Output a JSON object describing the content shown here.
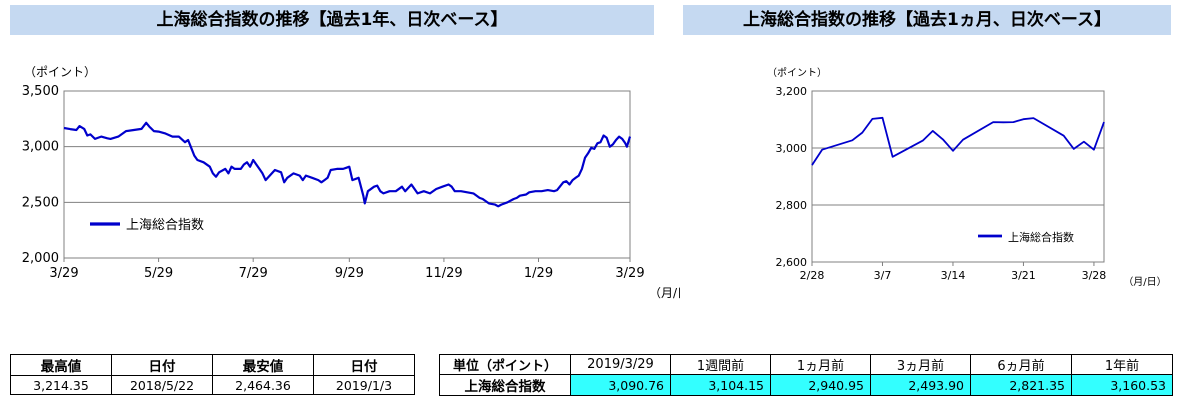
{
  "left_panel": {
    "title": "上海総合指数の推移【過去1年、日次ベース】",
    "unit_label": "（ポイント）",
    "xaxis_unit": "（月/日）"
  },
  "right_panel": {
    "title": "上海総合指数の推移【過去1ヵ月、日次ベース】",
    "unit_label": "（ポイント）",
    "xaxis_unit": "（月/日）"
  },
  "chart_data": [
    {
      "type": "line",
      "title": "上海総合指数の推移【過去1年、日次ベース】",
      "ylabel": "（ポイント）",
      "xlabel": "（月/日）",
      "ylim": [
        2000,
        3500
      ],
      "yticks": [
        2000,
        2500,
        3000,
        3500
      ],
      "ytick_labels": [
        "2,000",
        "2,500",
        "3,000",
        "3,500"
      ],
      "xlim": [
        0,
        365
      ],
      "xticks": [
        {
          "label": "3/29",
          "x": 0
        },
        {
          "label": "5/29",
          "x": 61
        },
        {
          "label": "7/29",
          "x": 122
        },
        {
          "label": "9/29",
          "x": 184
        },
        {
          "label": "11/29",
          "x": 245
        },
        {
          "label": "1/29",
          "x": 306
        },
        {
          "label": "3/29",
          "x": 365
        }
      ],
      "grid": true,
      "legend": "center-left",
      "series": [
        {
          "name": "上海総合指数",
          "color": "#0000cc",
          "points": [
            [
              0,
              3168
            ],
            [
              4,
              3158
            ],
            [
              8,
              3150
            ],
            [
              10,
              3185
            ],
            [
              13,
              3160
            ],
            [
              15,
              3100
            ],
            [
              17,
              3110
            ],
            [
              20,
              3070
            ],
            [
              24,
              3090
            ],
            [
              28,
              3075
            ],
            [
              30,
              3070
            ],
            [
              35,
              3090
            ],
            [
              40,
              3140
            ],
            [
              45,
              3150
            ],
            [
              50,
              3160
            ],
            [
              53,
              3214
            ],
            [
              55,
              3180
            ],
            [
              58,
              3140
            ],
            [
              61,
              3135
            ],
            [
              65,
              3120
            ],
            [
              70,
              3090
            ],
            [
              74,
              3090
            ],
            [
              78,
              3040
            ],
            [
              80,
              3060
            ],
            [
              82,
              2990
            ],
            [
              84,
              2920
            ],
            [
              86,
              2880
            ],
            [
              90,
              2860
            ],
            [
              94,
              2820
            ],
            [
              96,
              2760
            ],
            [
              98,
              2730
            ],
            [
              100,
              2770
            ],
            [
              104,
              2800
            ],
            [
              106,
              2760
            ],
            [
              108,
              2820
            ],
            [
              110,
              2800
            ],
            [
              114,
              2800
            ],
            [
              116,
              2840
            ],
            [
              118,
              2860
            ],
            [
              120,
              2820
            ],
            [
              122,
              2880
            ],
            [
              124,
              2840
            ],
            [
              126,
              2800
            ],
            [
              128,
              2760
            ],
            [
              130,
              2700
            ],
            [
              132,
              2730
            ],
            [
              136,
              2790
            ],
            [
              140,
              2770
            ],
            [
              142,
              2680
            ],
            [
              144,
              2720
            ],
            [
              148,
              2760
            ],
            [
              152,
              2740
            ],
            [
              154,
              2700
            ],
            [
              156,
              2740
            ],
            [
              160,
              2720
            ],
            [
              164,
              2700
            ],
            [
              166,
              2680
            ],
            [
              168,
              2700
            ],
            [
              170,
              2720
            ],
            [
              172,
              2790
            ],
            [
              176,
              2800
            ],
            [
              180,
              2800
            ],
            [
              182,
              2810
            ],
            [
              184,
              2820
            ],
            [
              186,
              2700
            ],
            [
              190,
              2720
            ],
            [
              193,
              2560
            ],
            [
              194,
              2490
            ],
            [
              196,
              2600
            ],
            [
              200,
              2640
            ],
            [
              202,
              2650
            ],
            [
              204,
              2600
            ],
            [
              206,
              2580
            ],
            [
              210,
              2600
            ],
            [
              214,
              2600
            ],
            [
              218,
              2640
            ],
            [
              220,
              2600
            ],
            [
              224,
              2660
            ],
            [
              228,
              2580
            ],
            [
              232,
              2600
            ],
            [
              236,
              2580
            ],
            [
              240,
              2620
            ],
            [
              244,
              2640
            ],
            [
              248,
              2660
            ],
            [
              250,
              2640
            ],
            [
              252,
              2600
            ],
            [
              256,
              2600
            ],
            [
              260,
              2590
            ],
            [
              264,
              2580
            ],
            [
              268,
              2540
            ],
            [
              270,
              2530
            ],
            [
              274,
              2490
            ],
            [
              278,
              2480
            ],
            [
              280,
              2464
            ],
            [
              282,
              2480
            ],
            [
              286,
              2500
            ],
            [
              290,
              2530
            ],
            [
              292,
              2540
            ],
            [
              294,
              2560
            ],
            [
              298,
              2570
            ],
            [
              300,
              2590
            ],
            [
              304,
              2600
            ],
            [
              308,
              2600
            ],
            [
              312,
              2610
            ],
            [
              316,
              2600
            ],
            [
              318,
              2610
            ],
            [
              322,
              2680
            ],
            [
              324,
              2690
            ],
            [
              326,
              2660
            ],
            [
              328,
              2700
            ],
            [
              330,
              2720
            ],
            [
              332,
              2740
            ],
            [
              334,
              2800
            ],
            [
              336,
              2900
            ],
            [
              338,
              2940
            ],
            [
              340,
              2990
            ],
            [
              342,
              2980
            ],
            [
              344,
              3030
            ],
            [
              346,
              3040
            ],
            [
              348,
              3100
            ],
            [
              350,
              3080
            ],
            [
              352,
              3000
            ],
            [
              354,
              3020
            ],
            [
              356,
              3060
            ],
            [
              358,
              3090
            ],
            [
              360,
              3070
            ],
            [
              362,
              3030
            ],
            [
              363,
              3000
            ],
            [
              365,
              3090
            ]
          ]
        }
      ]
    },
    {
      "type": "line",
      "title": "上海総合指数の推移【過去1ヵ月、日次ベース】",
      "ylabel": "（ポイント）",
      "xlabel": "（月/日）",
      "ylim": [
        2600,
        3200
      ],
      "yticks": [
        2600,
        2800,
        3000,
        3200
      ],
      "ytick_labels": [
        "2,600",
        "2,800",
        "3,000",
        "3,200"
      ],
      "xlim": [
        0,
        29
      ],
      "xticks": [
        {
          "label": "2/28",
          "x": 0
        },
        {
          "label": "3/7",
          "x": 7
        },
        {
          "label": "3/14",
          "x": 14
        },
        {
          "label": "3/21",
          "x": 21
        },
        {
          "label": "3/28",
          "x": 28
        }
      ],
      "grid": true,
      "legend": "bottom-right",
      "series": [
        {
          "name": "上海総合指数",
          "color": "#0000cc",
          "points": [
            [
              0,
              2940
            ],
            [
              1,
              2994
            ],
            [
              4,
              3027
            ],
            [
              5,
              3054
            ],
            [
              6,
              3102
            ],
            [
              7,
              3106
            ],
            [
              8,
              2969
            ],
            [
              11,
              3026
            ],
            [
              12,
              3060
            ],
            [
              13,
              3030
            ],
            [
              14,
              2990
            ],
            [
              15,
              3029
            ],
            [
              18,
              3091
            ],
            [
              19,
              3090
            ],
            [
              20,
              3091
            ],
            [
              21,
              3101
            ],
            [
              22,
              3105
            ],
            [
              25,
              3043
            ],
            [
              26,
              2997
            ],
            [
              27,
              3022
            ],
            [
              28,
              2994
            ],
            [
              29,
              3091
            ]
          ]
        }
      ]
    }
  ],
  "stats_table": {
    "headers": [
      "最高値",
      "日付",
      "最安値",
      "日付"
    ],
    "values": [
      "3,214.35",
      "2018/5/22",
      "2,464.36",
      "2019/1/3"
    ]
  },
  "comparison_table": {
    "headers": [
      "単位（ポイント）",
      "2019/3/29",
      "1週間前",
      "1ヵ月前",
      "3ヵ月前",
      "6ヵ月前",
      "1年前"
    ],
    "row_label": "上海総合指数",
    "values": [
      "3,090.76",
      "3,104.15",
      "2,940.95",
      "2,493.90",
      "2,821.35",
      "3,160.53"
    ],
    "highlight_color": "#33ffff"
  }
}
